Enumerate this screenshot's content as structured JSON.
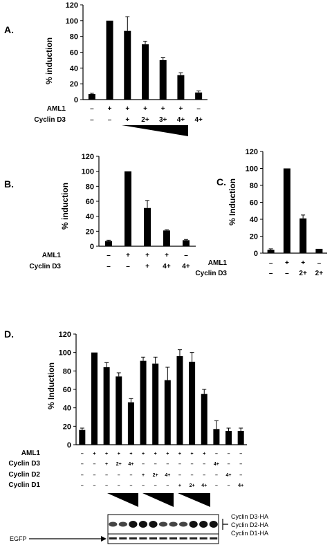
{
  "chart_data": [
    {
      "panel": "A.",
      "type": "bar",
      "ylabel": "% induction",
      "ylim": [
        0,
        120
      ],
      "yticks": [
        0,
        20,
        40,
        60,
        80,
        100,
        120
      ],
      "values": [
        7,
        100,
        87,
        70,
        50,
        31,
        9
      ],
      "errors": [
        1,
        0,
        18,
        4,
        3,
        3,
        2
      ],
      "rows": [
        {
          "label": "AML1",
          "values": [
            "-",
            "+",
            "+",
            "+",
            "+",
            "+",
            "-"
          ]
        },
        {
          "label": "Cyclin D3",
          "values": [
            "-",
            "-",
            "+",
            "2+",
            "3+",
            "4+",
            "4+"
          ]
        }
      ]
    },
    {
      "panel": "B.",
      "type": "bar",
      "ylabel": "% induction",
      "ylim": [
        0,
        120
      ],
      "yticks": [
        0,
        20,
        40,
        60,
        80,
        100,
        120
      ],
      "values": [
        7,
        100,
        51,
        21,
        8
      ],
      "errors": [
        1,
        0,
        10,
        1,
        1
      ],
      "rows": [
        {
          "label": "AML1",
          "values": [
            "-",
            "+",
            "+",
            "+",
            "-"
          ]
        },
        {
          "label": "Cyclin D3",
          "values": [
            "-",
            "-",
            "+",
            "4+",
            "4+"
          ]
        }
      ]
    },
    {
      "panel": "C.",
      "type": "bar",
      "ylabel": "% Induction",
      "ylim": [
        0,
        120
      ],
      "yticks": [
        0,
        20,
        40,
        60,
        80,
        100,
        120
      ],
      "values": [
        4,
        100,
        41,
        5
      ],
      "errors": [
        1,
        0,
        4,
        0
      ],
      "rows": [
        {
          "label": "AML1",
          "values": [
            "-",
            "+",
            "+",
            "-"
          ]
        },
        {
          "label": "Cyclin D3",
          "values": [
            "-",
            "-",
            "2+",
            "2+"
          ]
        }
      ]
    },
    {
      "panel": "D.",
      "type": "bar",
      "ylabel": "% Induction",
      "ylim": [
        0,
        120
      ],
      "yticks": [
        0,
        20,
        40,
        60,
        80,
        100,
        120
      ],
      "values": [
        16,
        100,
        84,
        74,
        46,
        91,
        88,
        70,
        96,
        90,
        55,
        17,
        15,
        15
      ],
      "errors": [
        2,
        0,
        5,
        4,
        4,
        4,
        7,
        14,
        7,
        10,
        5,
        9,
        3,
        3
      ],
      "rows": [
        {
          "label": "AML1",
          "values": [
            "-",
            "+",
            "+",
            "+",
            "+",
            "+",
            "+",
            "+",
            "+",
            "+",
            "+",
            "-",
            "-",
            "-"
          ]
        },
        {
          "label": "Cyclin D3",
          "values": [
            "-",
            "-",
            "+",
            "2+",
            "4+",
            "-",
            "-",
            "-",
            "-",
            "-",
            "-",
            "4+",
            "-",
            "-"
          ]
        },
        {
          "label": "Cyclin D2",
          "values": [
            "-",
            "-",
            "-",
            "-",
            "-",
            "+",
            "2+",
            "4+",
            "-",
            "-",
            "-",
            "-",
            "4+",
            "-"
          ]
        },
        {
          "label": "Cyclin D1",
          "values": [
            "-",
            "-",
            "-",
            "-",
            "-",
            "-",
            "-",
            "-",
            "+",
            "2+",
            "4+",
            "-",
            "-",
            "4+"
          ]
        }
      ],
      "blot": {
        "labels": [
          "Cyclin D3-HA",
          "Cyclin D2-HA",
          "Cyclin D1-HA"
        ],
        "loading_label": "EGFP"
      }
    }
  ]
}
